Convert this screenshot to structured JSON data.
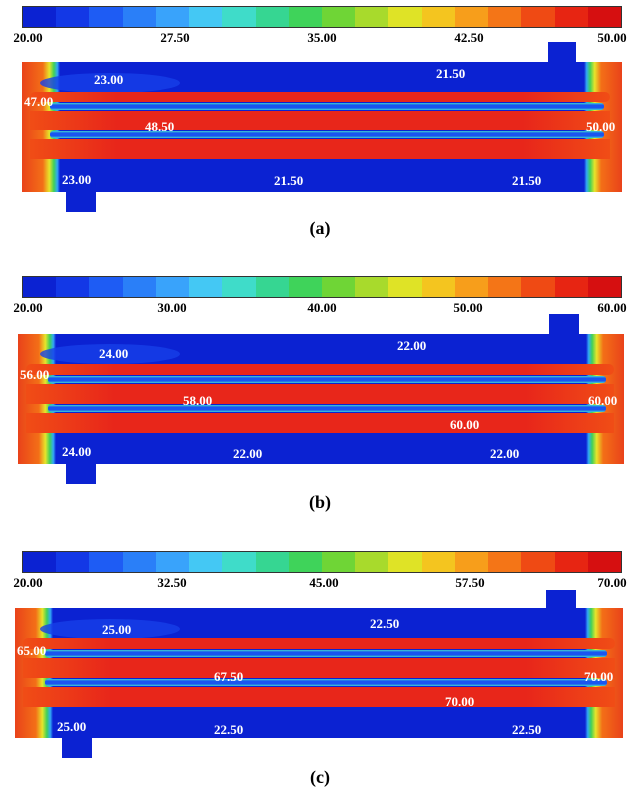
{
  "colorbar_colors": [
    "#0b22d2",
    "#1338e6",
    "#1e5cf4",
    "#2a7ff8",
    "#39a3fb",
    "#44c8f4",
    "#3fdcc9",
    "#36d692",
    "#3fd35a",
    "#6fd536",
    "#a8da2c",
    "#dfe326",
    "#f4c51f",
    "#f79e1b",
    "#f47517",
    "#ef4a14",
    "#e72512",
    "#d60f10"
  ],
  "panels": [
    {
      "caption": "(a)",
      "ticks": [
        "20.00",
        "27.50",
        "35.00",
        "42.50",
        "50.00"
      ],
      "labels": {
        "l1": "23.00",
        "l2": "21.50",
        "l3": "47.00",
        "l4": "48.50",
        "l5": "50.00",
        "l6": "23.00",
        "l7": "21.50",
        "l8": "21.50"
      }
    },
    {
      "caption": "(b)",
      "ticks": [
        "20.00",
        "30.00",
        "40.00",
        "50.00",
        "60.00"
      ],
      "labels": {
        "l1": "24.00",
        "l2": "22.00",
        "l3": "56.00",
        "l4": "58.00",
        "l5": "60.00",
        "l6": "60.00",
        "l7": "24.00",
        "l8": "22.00",
        "l9": "22.00"
      }
    },
    {
      "caption": "(c)",
      "ticks": [
        "20.00",
        "32.50",
        "45.00",
        "57.50",
        "70.00"
      ],
      "labels": {
        "l1": "25.00",
        "l2": "22.50",
        "l3": "65.00",
        "l4": "67.50",
        "l5": "70.00",
        "l6": "70.00",
        "l7": "25.00",
        "l8": "22.50",
        "l9": "22.50"
      }
    }
  ]
}
